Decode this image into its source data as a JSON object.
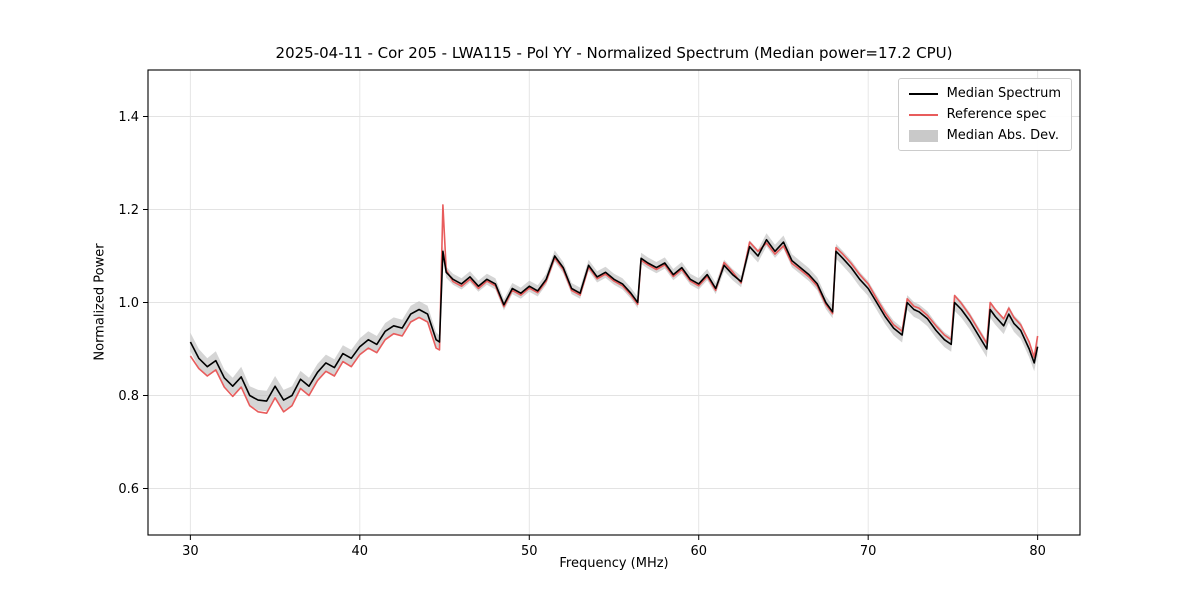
{
  "chart_data": {
    "type": "line",
    "title": "2025-04-11 - Cor 205 - LWA115 - Pol YY - Normalized Spectrum (Median power=17.2 CPU)",
    "xlabel": "Frequency (MHz)",
    "ylabel": "Normalized Power",
    "xlim": [
      27.5,
      82.5
    ],
    "ylim": [
      0.5,
      1.5
    ],
    "xticks": [
      30,
      40,
      50,
      60,
      70,
      80
    ],
    "xtick_labels": [
      "30",
      "40",
      "50",
      "60",
      "70",
      "80"
    ],
    "yticks": [
      0.6,
      0.8,
      1.0,
      1.2,
      1.4
    ],
    "ytick_labels": [
      "0.6",
      "0.8",
      "1.0",
      "1.2",
      "1.4"
    ],
    "grid": true,
    "legend_position": "upper right",
    "mad_label": "Median Abs. Dev.",
    "colors": {
      "median": "#000000",
      "reference": "#e85c5c",
      "mad": "#bfbfbf",
      "grid": "#e3e3e3",
      "frame": "#000000"
    },
    "x": [
      30.0,
      30.5,
      31.0,
      31.5,
      32.0,
      32.5,
      33.0,
      33.5,
      34.0,
      34.5,
      35.0,
      35.5,
      36.0,
      36.5,
      37.0,
      37.5,
      38.0,
      38.5,
      39.0,
      39.5,
      40.0,
      40.5,
      41.0,
      41.5,
      42.0,
      42.5,
      43.0,
      43.5,
      44.0,
      44.5,
      44.7,
      44.9,
      45.1,
      45.5,
      46.0,
      46.5,
      47.0,
      47.5,
      48.0,
      48.5,
      49.0,
      49.5,
      50.0,
      50.5,
      51.0,
      51.5,
      52.0,
      52.5,
      53.0,
      53.5,
      54.0,
      54.5,
      55.0,
      55.5,
      56.0,
      56.4,
      56.6,
      57.0,
      57.5,
      58.0,
      58.5,
      59.0,
      59.5,
      60.0,
      60.5,
      61.0,
      61.5,
      62.0,
      62.5,
      63.0,
      63.5,
      64.0,
      64.5,
      65.0,
      65.5,
      66.0,
      66.5,
      67.0,
      67.5,
      67.9,
      68.1,
      68.5,
      69.0,
      69.5,
      70.0,
      70.5,
      71.0,
      71.5,
      72.0,
      72.3,
      72.7,
      73.0,
      73.5,
      74.0,
      74.5,
      74.9,
      75.1,
      75.5,
      76.0,
      76.5,
      77.0,
      77.2,
      77.5,
      78.0,
      78.3,
      78.6,
      79.0,
      79.5,
      79.8,
      80.0
    ],
    "series": [
      {
        "name": "Median Spectrum",
        "values": [
          0.915,
          0.88,
          0.862,
          0.875,
          0.838,
          0.82,
          0.84,
          0.8,
          0.79,
          0.788,
          0.82,
          0.79,
          0.8,
          0.835,
          0.82,
          0.85,
          0.87,
          0.86,
          0.89,
          0.88,
          0.905,
          0.92,
          0.91,
          0.938,
          0.95,
          0.945,
          0.975,
          0.985,
          0.975,
          0.92,
          0.915,
          1.11,
          1.065,
          1.05,
          1.04,
          1.055,
          1.035,
          1.05,
          1.04,
          0.995,
          1.03,
          1.02,
          1.035,
          1.025,
          1.05,
          1.1,
          1.075,
          1.03,
          1.02,
          1.08,
          1.055,
          1.065,
          1.05,
          1.04,
          1.02,
          1.0,
          1.095,
          1.085,
          1.075,
          1.085,
          1.06,
          1.075,
          1.05,
          1.04,
          1.06,
          1.03,
          1.08,
          1.06,
          1.045,
          1.12,
          1.1,
          1.135,
          1.11,
          1.13,
          1.09,
          1.075,
          1.06,
          1.04,
          1.0,
          0.98,
          1.11,
          1.095,
          1.075,
          1.05,
          1.03,
          1.0,
          0.97,
          0.945,
          0.93,
          1.0,
          0.985,
          0.98,
          0.965,
          0.94,
          0.92,
          0.91,
          1.0,
          0.985,
          0.96,
          0.93,
          0.9,
          0.985,
          0.97,
          0.95,
          0.975,
          0.955,
          0.94,
          0.9,
          0.87,
          0.905
        ]
      },
      {
        "name": "Reference spec",
        "values": [
          0.885,
          0.858,
          0.842,
          0.855,
          0.818,
          0.798,
          0.818,
          0.778,
          0.765,
          0.762,
          0.795,
          0.765,
          0.778,
          0.815,
          0.8,
          0.832,
          0.852,
          0.842,
          0.873,
          0.862,
          0.888,
          0.902,
          0.892,
          0.92,
          0.933,
          0.928,
          0.958,
          0.968,
          0.958,
          0.902,
          0.898,
          1.21,
          1.07,
          1.045,
          1.035,
          1.05,
          1.03,
          1.046,
          1.036,
          0.991,
          1.026,
          1.016,
          1.031,
          1.021,
          1.046,
          1.096,
          1.071,
          1.026,
          1.016,
          1.076,
          1.051,
          1.061,
          1.046,
          1.036,
          1.016,
          0.996,
          1.091,
          1.081,
          1.071,
          1.081,
          1.056,
          1.071,
          1.046,
          1.036,
          1.056,
          1.026,
          1.086,
          1.066,
          1.042,
          1.13,
          1.11,
          1.128,
          1.104,
          1.122,
          1.084,
          1.07,
          1.055,
          1.035,
          0.996,
          0.976,
          1.118,
          1.104,
          1.084,
          1.06,
          1.04,
          1.008,
          0.978,
          0.952,
          0.938,
          1.008,
          0.992,
          0.988,
          0.972,
          0.95,
          0.93,
          0.92,
          1.015,
          0.998,
          0.972,
          0.942,
          0.912,
          1.0,
          0.985,
          0.965,
          0.988,
          0.968,
          0.952,
          0.915,
          0.882,
          0.928
        ]
      }
    ],
    "mad": [
      0.02,
      0.02,
      0.018,
      0.02,
      0.018,
      0.018,
      0.022,
      0.02,
      0.022,
      0.022,
      0.022,
      0.022,
      0.02,
      0.018,
      0.018,
      0.018,
      0.018,
      0.018,
      0.018,
      0.018,
      0.018,
      0.018,
      0.018,
      0.018,
      0.018,
      0.018,
      0.018,
      0.018,
      0.018,
      0.016,
      0.014,
      0.012,
      0.012,
      0.012,
      0.012,
      0.012,
      0.012,
      0.012,
      0.012,
      0.012,
      0.012,
      0.012,
      0.012,
      0.012,
      0.012,
      0.012,
      0.012,
      0.012,
      0.012,
      0.012,
      0.012,
      0.012,
      0.012,
      0.012,
      0.012,
      0.012,
      0.012,
      0.012,
      0.012,
      0.012,
      0.012,
      0.012,
      0.012,
      0.012,
      0.012,
      0.012,
      0.012,
      0.012,
      0.012,
      0.014,
      0.014,
      0.014,
      0.014,
      0.014,
      0.014,
      0.014,
      0.014,
      0.014,
      0.014,
      0.014,
      0.016,
      0.016,
      0.016,
      0.016,
      0.016,
      0.016,
      0.016,
      0.016,
      0.016,
      0.016,
      0.016,
      0.016,
      0.016,
      0.016,
      0.016,
      0.016,
      0.018,
      0.018,
      0.018,
      0.018,
      0.018,
      0.018,
      0.018,
      0.018,
      0.018,
      0.018,
      0.018,
      0.018,
      0.018,
      0.018
    ]
  }
}
